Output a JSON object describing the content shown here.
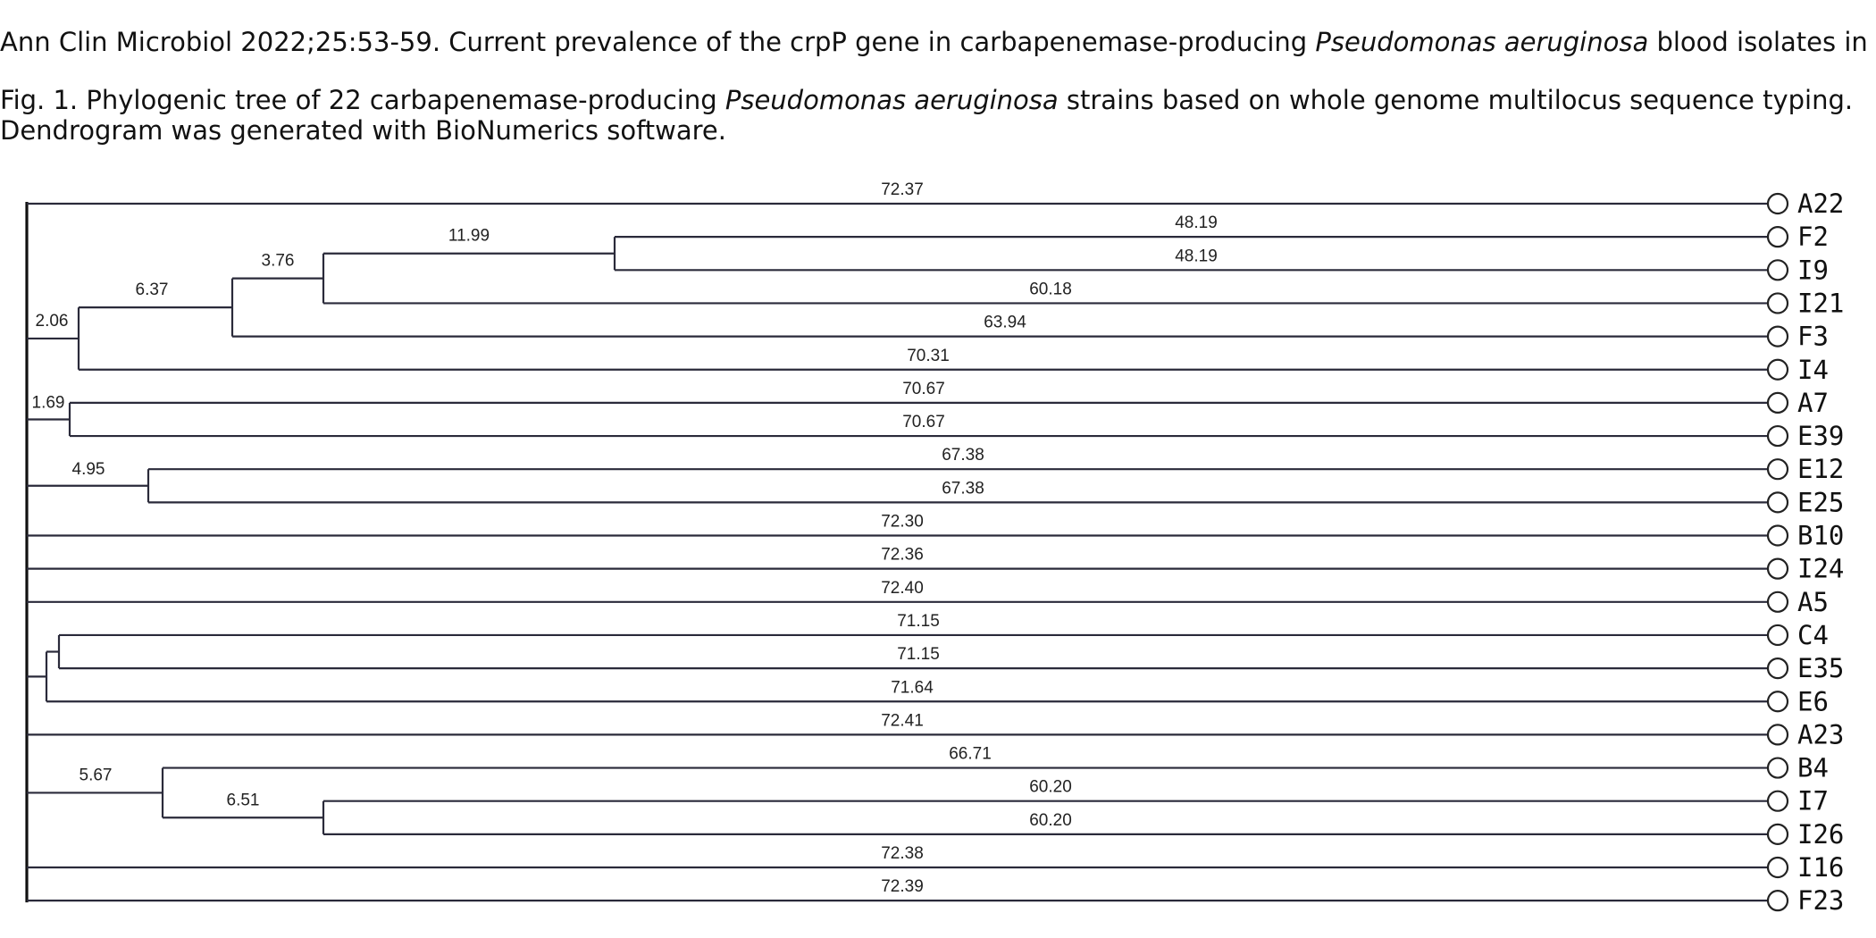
{
  "citation": {
    "pre": "Ann Clin Microbiol 2022;25:53-59. Current prevalence of the crpP gene in carbapenemase-producing ",
    "species": "Pseudomonas aeruginosa",
    "post": " blood isolates in Korea"
  },
  "caption": {
    "pre": "Fig. 1. Phylogenic tree of 22 carbapenemase-producing ",
    "species": "Pseudomonas aeruginosa",
    "post": " strains based on whole genome multilocus sequence typing. Dendrogram was generated with BioNumerics software."
  },
  "tree": {
    "leaves": [
      "A22",
      "F2",
      "I9",
      "I21",
      "F3",
      "I4",
      "A7",
      "E39",
      "E12",
      "E25",
      "B10",
      "I24",
      "A5",
      "C4",
      "E35",
      "E6",
      "A23",
      "B4",
      "I7",
      "I26",
      "I16",
      "F23"
    ],
    "leaf_distances": [
      "72.37",
      "48.19",
      "48.19",
      "60.18",
      "63.94",
      "70.31",
      "70.67",
      "70.67",
      "67.38",
      "67.38",
      "72.30",
      "72.36",
      "72.40",
      "71.15",
      "71.15",
      "71.64",
      "72.41",
      "66.71",
      "60.20",
      "60.20",
      "72.38",
      "72.39"
    ],
    "internal_nodes": [
      {
        "id": "n_f2_i9",
        "label": "11.99",
        "children": [
          "F2",
          "I9"
        ]
      },
      {
        "id": "n_3_76",
        "label": "3.76",
        "children": [
          "n_f2_i9",
          "I21"
        ]
      },
      {
        "id": "n_6_37",
        "label": "6.37",
        "children": [
          "n_3_76",
          "F3"
        ]
      },
      {
        "id": "n_2_06",
        "label": "2.06",
        "children": [
          "n_6_37",
          "I4"
        ]
      },
      {
        "id": "n_1_69",
        "label": "1.69",
        "children": [
          "A7",
          "E39"
        ]
      },
      {
        "id": "n_4_95",
        "label": "4.95",
        "children": [
          "E12",
          "E25"
        ]
      },
      {
        "id": "n_c4_e35",
        "label": "",
        "children": [
          "C4",
          "E35"
        ]
      },
      {
        "id": "n_c4_e6",
        "label": "",
        "children": [
          "n_c4_e35",
          "E6"
        ]
      },
      {
        "id": "n_6_51",
        "label": "6.51",
        "children": [
          "I7",
          "I26"
        ]
      },
      {
        "id": "n_5_67",
        "label": "5.67",
        "children": [
          "B4",
          "n_6_51"
        ]
      }
    ]
  }
}
